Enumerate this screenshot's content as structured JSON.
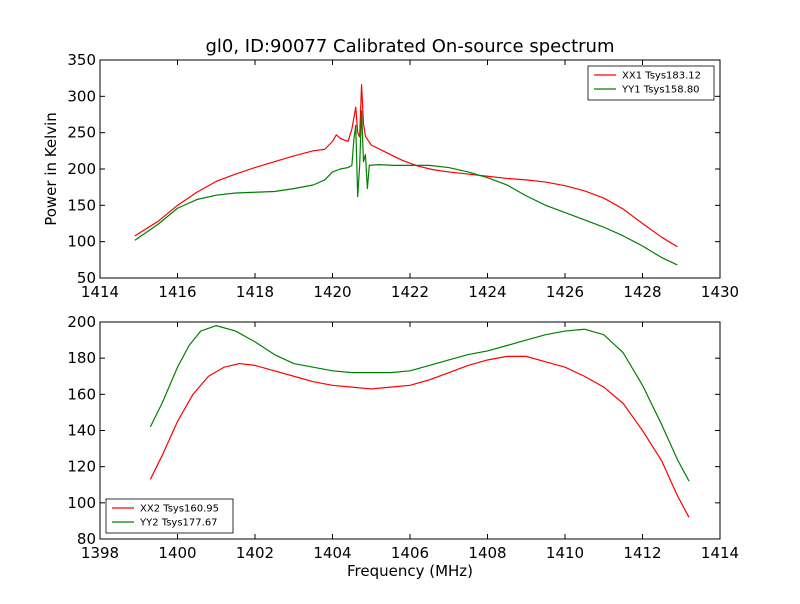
{
  "chart_data": [
    {
      "type": "line",
      "title": "gl0, ID:90077 Calibrated On-source spectrum",
      "xlabel": "",
      "ylabel": "Power in Kelvin",
      "xlim": [
        1414,
        1430
      ],
      "ylim": [
        50,
        350
      ],
      "xticks": [
        1414,
        1416,
        1418,
        1420,
        1422,
        1424,
        1426,
        1428,
        1430
      ],
      "yticks": [
        50,
        100,
        150,
        200,
        250,
        300,
        350
      ],
      "grid": false,
      "legend": "top-right",
      "series": [
        {
          "name": "XX1 Tsys183.12",
          "color": "#ff0000",
          "points": [
            [
              1414.9,
              108
            ],
            [
              1415.5,
              128
            ],
            [
              1416.0,
              150
            ],
            [
              1416.5,
              168
            ],
            [
              1417.0,
              183
            ],
            [
              1417.5,
              193
            ],
            [
              1418.0,
              202
            ],
            [
              1418.5,
              210
            ],
            [
              1419.0,
              218
            ],
            [
              1419.5,
              225
            ],
            [
              1419.8,
              227
            ],
            [
              1420.0,
              238
            ],
            [
              1420.1,
              247
            ],
            [
              1420.2,
              242
            ],
            [
              1420.4,
              238
            ],
            [
              1420.5,
              255
            ],
            [
              1420.6,
              285
            ],
            [
              1420.65,
              250
            ],
            [
              1420.7,
              244
            ],
            [
              1420.75,
              316
            ],
            [
              1420.8,
              262
            ],
            [
              1420.85,
              245
            ],
            [
              1421.0,
              233
            ],
            [
              1421.3,
              225
            ],
            [
              1421.8,
              212
            ],
            [
              1422.2,
              204
            ],
            [
              1422.6,
              199
            ],
            [
              1423.0,
              196
            ],
            [
              1423.5,
              193
            ],
            [
              1424.0,
              190
            ],
            [
              1424.5,
              187
            ],
            [
              1425.0,
              185
            ],
            [
              1425.5,
              182
            ],
            [
              1426.0,
              177
            ],
            [
              1426.5,
              170
            ],
            [
              1427.0,
              160
            ],
            [
              1427.5,
              145
            ],
            [
              1428.0,
              125
            ],
            [
              1428.5,
              106
            ],
            [
              1428.9,
              93
            ]
          ]
        },
        {
          "name": "YY1 Tsys158.80",
          "color": "#008000",
          "points": [
            [
              1414.9,
              102
            ],
            [
              1415.5,
              124
            ],
            [
              1416.0,
              146
            ],
            [
              1416.5,
              158
            ],
            [
              1417.0,
              164
            ],
            [
              1417.5,
              167
            ],
            [
              1418.0,
              168
            ],
            [
              1418.5,
              169
            ],
            [
              1419.0,
              173
            ],
            [
              1419.5,
              178
            ],
            [
              1419.8,
              185
            ],
            [
              1420.0,
              196
            ],
            [
              1420.2,
              200
            ],
            [
              1420.4,
              202
            ],
            [
              1420.5,
              205
            ],
            [
              1420.55,
              240
            ],
            [
              1420.6,
              260
            ],
            [
              1420.65,
              162
            ],
            [
              1420.7,
              204
            ],
            [
              1420.75,
              280
            ],
            [
              1420.8,
              210
            ],
            [
              1420.85,
              220
            ],
            [
              1420.9,
              173
            ],
            [
              1420.95,
              205
            ],
            [
              1421.2,
              206
            ],
            [
              1421.6,
              205
            ],
            [
              1422.0,
              205
            ],
            [
              1422.5,
              205
            ],
            [
              1423.0,
              202
            ],
            [
              1423.5,
              196
            ],
            [
              1424.0,
              188
            ],
            [
              1424.5,
              178
            ],
            [
              1425.0,
              163
            ],
            [
              1425.5,
              150
            ],
            [
              1426.0,
              140
            ],
            [
              1426.5,
              130
            ],
            [
              1427.0,
              120
            ],
            [
              1427.5,
              108
            ],
            [
              1428.0,
              94
            ],
            [
              1428.5,
              78
            ],
            [
              1428.9,
              68
            ]
          ]
        }
      ]
    },
    {
      "type": "line",
      "title": "",
      "xlabel": "Frequency (MHz)",
      "ylabel": "",
      "xlim": [
        1398,
        1414
      ],
      "ylim": [
        80,
        200
      ],
      "xticks": [
        1398,
        1400,
        1402,
        1404,
        1406,
        1408,
        1410,
        1412,
        1414
      ],
      "yticks": [
        80,
        100,
        120,
        140,
        160,
        180,
        200
      ],
      "grid": false,
      "legend": "bottom-left",
      "series": [
        {
          "name": "XX2 Tsys160.95",
          "color": "#ff0000",
          "points": [
            [
              1399.3,
              113
            ],
            [
              1399.6,
              126
            ],
            [
              1400.0,
              145
            ],
            [
              1400.4,
              160
            ],
            [
              1400.8,
              170
            ],
            [
              1401.2,
              175
            ],
            [
              1401.6,
              177
            ],
            [
              1402.0,
              176
            ],
            [
              1402.5,
              173
            ],
            [
              1403.0,
              170
            ],
            [
              1403.5,
              167
            ],
            [
              1404.0,
              165
            ],
            [
              1404.5,
              164
            ],
            [
              1405.0,
              163
            ],
            [
              1405.5,
              164
            ],
            [
              1406.0,
              165
            ],
            [
              1406.5,
              168
            ],
            [
              1407.0,
              172
            ],
            [
              1407.5,
              176
            ],
            [
              1408.0,
              179
            ],
            [
              1408.5,
              181
            ],
            [
              1409.0,
              181
            ],
            [
              1409.5,
              178
            ],
            [
              1410.0,
              175
            ],
            [
              1410.5,
              170
            ],
            [
              1411.0,
              164
            ],
            [
              1411.5,
              155
            ],
            [
              1412.0,
              140
            ],
            [
              1412.5,
              123
            ],
            [
              1412.9,
              104
            ],
            [
              1413.2,
              92
            ]
          ]
        },
        {
          "name": "YY2 Tsys177.67",
          "color": "#008000",
          "points": [
            [
              1399.3,
              142
            ],
            [
              1399.6,
              155
            ],
            [
              1400.0,
              175
            ],
            [
              1400.3,
              187
            ],
            [
              1400.6,
              195
            ],
            [
              1401.0,
              198
            ],
            [
              1401.5,
              195
            ],
            [
              1402.0,
              189
            ],
            [
              1402.5,
              182
            ],
            [
              1403.0,
              177
            ],
            [
              1403.5,
              175
            ],
            [
              1404.0,
              173
            ],
            [
              1404.5,
              172
            ],
            [
              1405.0,
              172
            ],
            [
              1405.5,
              172
            ],
            [
              1406.0,
              173
            ],
            [
              1406.5,
              176
            ],
            [
              1407.0,
              179
            ],
            [
              1407.5,
              182
            ],
            [
              1408.0,
              184
            ],
            [
              1408.5,
              187
            ],
            [
              1409.0,
              190
            ],
            [
              1409.5,
              193
            ],
            [
              1410.0,
              195
            ],
            [
              1410.5,
              196
            ],
            [
              1411.0,
              193
            ],
            [
              1411.5,
              183
            ],
            [
              1412.0,
              165
            ],
            [
              1412.5,
              143
            ],
            [
              1412.9,
              124
            ],
            [
              1413.2,
              112
            ]
          ]
        }
      ]
    }
  ]
}
